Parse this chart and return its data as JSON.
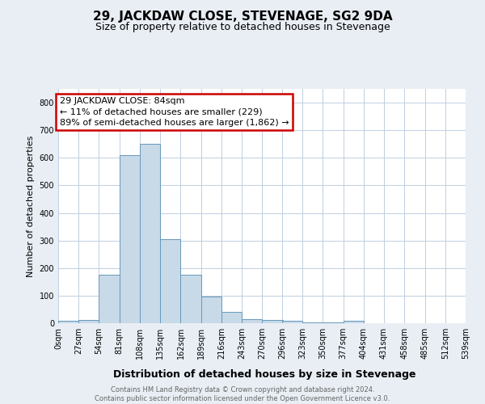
{
  "title": "29, JACKDAW CLOSE, STEVENAGE, SG2 9DA",
  "subtitle": "Size of property relative to detached houses in Stevenage",
  "xlabel": "Distribution of detached houses by size in Stevenage",
  "ylabel": "Number of detached properties",
  "bin_edges": [
    0,
    27,
    54,
    81,
    108,
    135,
    162,
    189,
    216,
    243,
    270,
    296,
    323,
    350,
    377,
    404,
    431,
    458,
    485,
    512,
    539
  ],
  "bin_labels": [
    "0sqm",
    "27sqm",
    "54sqm",
    "81sqm",
    "108sqm",
    "135sqm",
    "162sqm",
    "189sqm",
    "216sqm",
    "243sqm",
    "270sqm",
    "296sqm",
    "323sqm",
    "350sqm",
    "377sqm",
    "404sqm",
    "431sqm",
    "458sqm",
    "485sqm",
    "512sqm",
    "539sqm"
  ],
  "bar_heights": [
    8,
    12,
    175,
    610,
    650,
    305,
    175,
    98,
    42,
    15,
    12,
    8,
    3,
    2,
    8,
    0,
    0,
    0,
    0,
    0
  ],
  "bar_color": "#c8d9e8",
  "bar_edge_color": "#6699bb",
  "annotation_line1": "29 JACKDAW CLOSE: 84sqm",
  "annotation_line2": "← 11% of detached houses are smaller (229)",
  "annotation_line3": "89% of semi-detached houses are larger (1,862) →",
  "annotation_box_color": "#cc0000",
  "ylim": [
    0,
    850
  ],
  "yticks": [
    0,
    100,
    200,
    300,
    400,
    500,
    600,
    700,
    800
  ],
  "footer_text": "Contains HM Land Registry data © Crown copyright and database right 2024.\nContains public sector information licensed under the Open Government Licence v3.0.",
  "bg_color": "#e8eef4",
  "plot_bg_color": "#ffffff",
  "grid_color": "#c0cfe0",
  "title_fontsize": 11,
  "subtitle_fontsize": 9,
  "xlabel_fontsize": 9,
  "ylabel_fontsize": 8,
  "tick_fontsize": 7,
  "footer_fontsize": 6,
  "annot_fontsize": 8
}
